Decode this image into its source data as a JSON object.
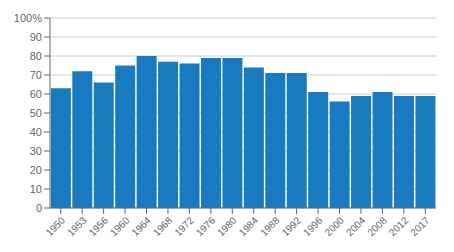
{
  "chart_data": {
    "type": "bar",
    "categories": [
      "1950",
      "1953",
      "1956",
      "1960",
      "1964",
      "1968",
      "1972",
      "1976",
      "1980",
      "1984",
      "1988",
      "1992",
      "1996",
      "2000",
      "2004",
      "2008",
      "2012",
      "2017"
    ],
    "values": [
      63,
      72,
      66,
      75,
      80,
      77,
      76,
      79,
      79,
      74,
      71,
      71,
      61,
      56,
      59,
      61,
      59,
      59
    ],
    "color": "#1a7abf",
    "ylim": [
      0,
      100
    ],
    "yticks": [
      0,
      10,
      20,
      30,
      40,
      50,
      60,
      70,
      80,
      90,
      {
        "value": 100,
        "label": "100%"
      }
    ],
    "grid": true
  }
}
